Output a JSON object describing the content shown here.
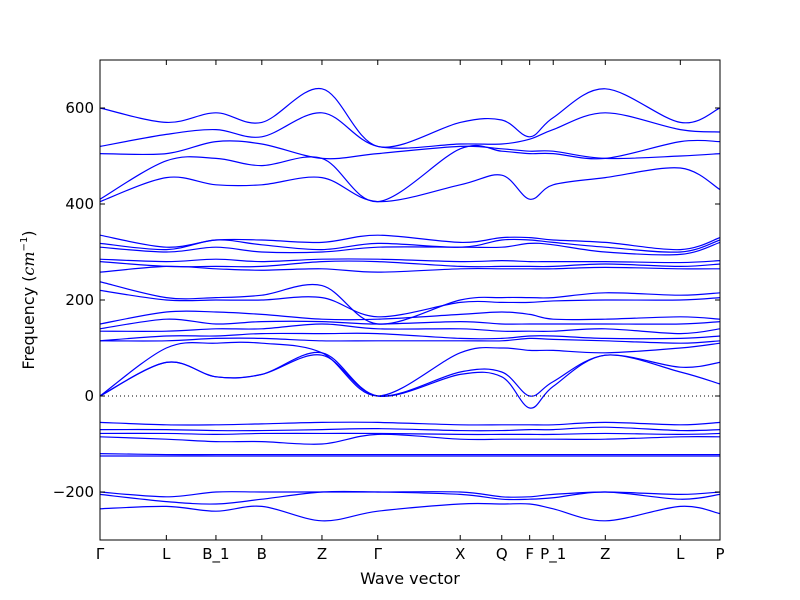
{
  "chart_data": {
    "type": "line",
    "xlabel": "Wave vector",
    "ylabel": "Frequency",
    "ylabel_unit": "cm",
    "ylabel_unit_exponent": "−1",
    "ylim": [
      -300,
      700
    ],
    "yticks": [
      -200,
      0,
      200,
      400,
      600
    ],
    "ytick_labels": [
      "−200",
      "0",
      "200",
      "400",
      "600"
    ],
    "xlim": [
      0,
      1
    ],
    "xticks": [
      {
        "label": "Γ",
        "x": 0.0
      },
      {
        "label": "L",
        "x": 0.107
      },
      {
        "label": "B_1",
        "x": 0.187
      },
      {
        "label": "B",
        "x": 0.261
      },
      {
        "label": "Z",
        "x": 0.358
      },
      {
        "label": "Γ",
        "x": 0.448
      },
      {
        "label": "X",
        "x": 0.581
      },
      {
        "label": "Q",
        "x": 0.648
      },
      {
        "label": "F",
        "x": 0.693
      },
      {
        "label": "P_1",
        "x": 0.731
      },
      {
        "label": "Z",
        "x": 0.815
      },
      {
        "label": "L",
        "x": 0.936
      },
      {
        "label": "P",
        "x": 1.0
      }
    ],
    "zero_line": true,
    "line_color": "#0000ff",
    "series": [
      {
        "x": [
          0,
          0.107,
          0.187,
          0.261,
          0.358,
          0.448,
          0.581,
          0.648,
          0.693,
          0.731,
          0.815,
          0.936,
          1.0
        ],
        "values": [
          600,
          570,
          590,
          570,
          640,
          520,
          570,
          575,
          540,
          580,
          640,
          570,
          600
        ]
      },
      {
        "x": [
          0,
          0.107,
          0.187,
          0.261,
          0.358,
          0.448,
          0.581,
          0.648,
          0.693,
          0.731,
          0.815,
          0.936,
          1.0
        ],
        "values": [
          520,
          545,
          555,
          540,
          590,
          520,
          525,
          525,
          535,
          555,
          590,
          555,
          550
        ]
      },
      {
        "x": [
          0,
          0.107,
          0.187,
          0.261,
          0.358,
          0.448,
          0.581,
          0.648,
          0.693,
          0.731,
          0.815,
          0.936,
          1.0
        ],
        "values": [
          505,
          505,
          530,
          525,
          495,
          505,
          520,
          515,
          510,
          510,
          495,
          500,
          505
        ]
      },
      {
        "x": [
          0,
          0.107,
          0.187,
          0.261,
          0.358,
          0.448,
          0.581,
          0.648,
          0.693,
          0.731,
          0.815,
          0.936,
          1.0
        ],
        "values": [
          410,
          490,
          495,
          480,
          495,
          405,
          515,
          510,
          505,
          505,
          495,
          530,
          530
        ]
      },
      {
        "x": [
          0,
          0.107,
          0.187,
          0.261,
          0.358,
          0.448,
          0.581,
          0.648,
          0.693,
          0.731,
          0.815,
          0.936,
          1.0
        ],
        "values": [
          405,
          455,
          440,
          440,
          455,
          405,
          440,
          460,
          410,
          440,
          455,
          475,
          430
        ]
      },
      {
        "x": [
          0,
          0.107,
          0.187,
          0.261,
          0.358,
          0.448,
          0.581,
          0.648,
          0.693,
          0.731,
          0.815,
          0.936,
          1.0
        ],
        "values": [
          335,
          310,
          325,
          325,
          320,
          335,
          320,
          330,
          330,
          325,
          320,
          305,
          330
        ]
      },
      {
        "x": [
          0,
          0.107,
          0.187,
          0.261,
          0.358,
          0.448,
          0.581,
          0.648,
          0.693,
          0.731,
          0.815,
          0.936,
          1.0
        ],
        "values": [
          318,
          305,
          325,
          315,
          305,
          318,
          310,
          325,
          325,
          320,
          310,
          300,
          325
        ]
      },
      {
        "x": [
          0,
          0.107,
          0.187,
          0.261,
          0.358,
          0.448,
          0.581,
          0.648,
          0.693,
          0.731,
          0.815,
          0.936,
          1.0
        ],
        "values": [
          310,
          300,
          310,
          300,
          300,
          310,
          310,
          310,
          318,
          315,
          300,
          295,
          320
        ]
      },
      {
        "x": [
          0,
          0.107,
          0.187,
          0.261,
          0.358,
          0.448,
          0.581,
          0.648,
          0.693,
          0.731,
          0.815,
          0.936,
          1.0
        ],
        "values": [
          285,
          280,
          285,
          280,
          285,
          285,
          280,
          282,
          280,
          280,
          280,
          278,
          282
        ]
      },
      {
        "x": [
          0,
          0.107,
          0.187,
          0.261,
          0.358,
          0.448,
          0.581,
          0.648,
          0.693,
          0.731,
          0.815,
          0.936,
          1.0
        ],
        "values": [
          280,
          270,
          270,
          270,
          280,
          280,
          270,
          270,
          270,
          270,
          275,
          270,
          275
        ]
      },
      {
        "x": [
          0,
          0.107,
          0.187,
          0.261,
          0.358,
          0.448,
          0.581,
          0.648,
          0.693,
          0.731,
          0.815,
          0.936,
          1.0
        ],
        "values": [
          258,
          270,
          265,
          262,
          265,
          258,
          265,
          265,
          265,
          265,
          268,
          265,
          265
        ]
      },
      {
        "x": [
          0,
          0.107,
          0.187,
          0.261,
          0.358,
          0.448,
          0.581,
          0.648,
          0.693,
          0.731,
          0.815,
          0.936,
          1.0
        ],
        "values": [
          238,
          205,
          205,
          210,
          230,
          150,
          200,
          205,
          205,
          205,
          215,
          210,
          215
        ]
      },
      {
        "x": [
          0,
          0.107,
          0.187,
          0.261,
          0.358,
          0.448,
          0.581,
          0.648,
          0.693,
          0.731,
          0.815,
          0.936,
          1.0
        ],
        "values": [
          220,
          200,
          200,
          200,
          205,
          165,
          195,
          195,
          195,
          198,
          200,
          200,
          205
        ]
      },
      {
        "x": [
          0,
          0.107,
          0.187,
          0.261,
          0.358,
          0.448,
          0.581,
          0.648,
          0.693,
          0.731,
          0.815,
          0.936,
          1.0
        ],
        "values": [
          150,
          175,
          175,
          170,
          160,
          160,
          170,
          175,
          170,
          160,
          160,
          165,
          160
        ]
      },
      {
        "x": [
          0,
          0.107,
          0.187,
          0.261,
          0.358,
          0.448,
          0.581,
          0.648,
          0.693,
          0.731,
          0.815,
          0.936,
          1.0
        ],
        "values": [
          140,
          160,
          150,
          155,
          155,
          150,
          155,
          150,
          150,
          150,
          150,
          150,
          155
        ]
      },
      {
        "x": [
          0,
          0.107,
          0.187,
          0.261,
          0.358,
          0.448,
          0.581,
          0.648,
          0.693,
          0.731,
          0.815,
          0.936,
          1.0
        ],
        "values": [
          135,
          135,
          140,
          140,
          150,
          140,
          140,
          135,
          135,
          135,
          140,
          130,
          140
        ]
      },
      {
        "x": [
          0,
          0.107,
          0.187,
          0.261,
          0.358,
          0.448,
          0.581,
          0.648,
          0.693,
          0.731,
          0.815,
          0.936,
          1.0
        ],
        "values": [
          115,
          125,
          125,
          130,
          130,
          130,
          120,
          120,
          125,
          125,
          120,
          120,
          125
        ]
      },
      {
        "x": [
          0,
          0.107,
          0.187,
          0.261,
          0.358,
          0.448,
          0.581,
          0.648,
          0.693,
          0.731,
          0.815,
          0.936,
          1.0
        ],
        "values": [
          115,
          115,
          120,
          120,
          115,
          115,
          115,
          115,
          120,
          118,
          115,
          110,
          115
        ]
      },
      {
        "x": [
          0,
          0.107,
          0.187,
          0.261,
          0.358,
          0.448,
          0.581,
          0.648,
          0.693,
          0.731,
          0.815,
          0.936,
          1.0
        ],
        "values": [
          0,
          100,
          110,
          110,
          90,
          0,
          90,
          100,
          95,
          95,
          90,
          100,
          110
        ]
      },
      {
        "x": [
          0,
          0.107,
          0.187,
          0.261,
          0.358,
          0.448,
          0.581,
          0.648,
          0.693,
          0.731,
          0.815,
          0.936,
          1.0
        ],
        "values": [
          0,
          70,
          40,
          45,
          85,
          0,
          50,
          50,
          0,
          30,
          85,
          60,
          70
        ]
      },
      {
        "x": [
          0,
          0.107,
          0.187,
          0.261,
          0.358,
          0.448,
          0.581,
          0.648,
          0.693,
          0.731,
          0.815,
          0.936,
          1.0
        ],
        "values": [
          0,
          70,
          40,
          45,
          90,
          0,
          45,
          40,
          -25,
          20,
          85,
          50,
          25
        ]
      },
      {
        "x": [
          0,
          0.107,
          0.187,
          0.261,
          0.358,
          0.448,
          0.581,
          0.648,
          0.693,
          0.731,
          0.815,
          0.936,
          1.0
        ],
        "values": [
          -55,
          -60,
          -60,
          -58,
          -55,
          -55,
          -60,
          -60,
          -60,
          -60,
          -55,
          -60,
          -55
        ]
      },
      {
        "x": [
          0,
          0.107,
          0.187,
          0.261,
          0.358,
          0.448,
          0.581,
          0.648,
          0.693,
          0.731,
          0.815,
          0.936,
          1.0
        ],
        "values": [
          -70,
          -70,
          -72,
          -72,
          -70,
          -68,
          -72,
          -72,
          -70,
          -70,
          -65,
          -72,
          -70
        ]
      },
      {
        "x": [
          0,
          0.107,
          0.187,
          0.261,
          0.358,
          0.448,
          0.581,
          0.648,
          0.693,
          0.731,
          0.815,
          0.936,
          1.0
        ],
        "values": [
          -78,
          -78,
          -80,
          -78,
          -78,
          -78,
          -80,
          -80,
          -80,
          -80,
          -78,
          -80,
          -78
        ]
      },
      {
        "x": [
          0,
          0.107,
          0.187,
          0.261,
          0.358,
          0.448,
          0.581,
          0.648,
          0.693,
          0.731,
          0.815,
          0.936,
          1.0
        ],
        "values": [
          -85,
          -90,
          -95,
          -95,
          -100,
          -80,
          -90,
          -90,
          -90,
          -90,
          -90,
          -85,
          -85
        ]
      },
      {
        "x": [
          0,
          0.107,
          0.187,
          0.261,
          0.358,
          0.448,
          0.581,
          0.648,
          0.693,
          0.731,
          0.815,
          0.936,
          1.0
        ],
        "values": [
          -120,
          -122,
          -122,
          -122,
          -122,
          -122,
          -122,
          -122,
          -122,
          -122,
          -122,
          -122,
          -122
        ]
      },
      {
        "x": [
          0,
          0.107,
          0.187,
          0.261,
          0.358,
          0.448,
          0.581,
          0.648,
          0.693,
          0.731,
          0.815,
          0.936,
          1.0
        ],
        "values": [
          -125,
          -125,
          -125,
          -125,
          -125,
          -125,
          -125,
          -125,
          -125,
          -125,
          -125,
          -125,
          -125
        ]
      },
      {
        "x": [
          0,
          0.107,
          0.187,
          0.261,
          0.358,
          0.448,
          0.581,
          0.648,
          0.693,
          0.731,
          0.815,
          0.936,
          1.0
        ],
        "values": [
          -200,
          -210,
          -200,
          -200,
          -200,
          -200,
          -200,
          -210,
          -210,
          -205,
          -200,
          -205,
          -200
        ]
      },
      {
        "x": [
          0,
          0.107,
          0.187,
          0.261,
          0.358,
          0.448,
          0.581,
          0.648,
          0.693,
          0.731,
          0.815,
          0.936,
          1.0
        ],
        "values": [
          -205,
          -220,
          -225,
          -215,
          -200,
          -200,
          -205,
          -215,
          -215,
          -212,
          -200,
          -215,
          -205
        ]
      },
      {
        "x": [
          0,
          0.107,
          0.187,
          0.261,
          0.358,
          0.448,
          0.581,
          0.648,
          0.693,
          0.731,
          0.815,
          0.936,
          1.0
        ],
        "values": [
          -235,
          -230,
          -240,
          -230,
          -260,
          -240,
          -225,
          -225,
          -225,
          -235,
          -260,
          -230,
          -245
        ]
      }
    ]
  }
}
